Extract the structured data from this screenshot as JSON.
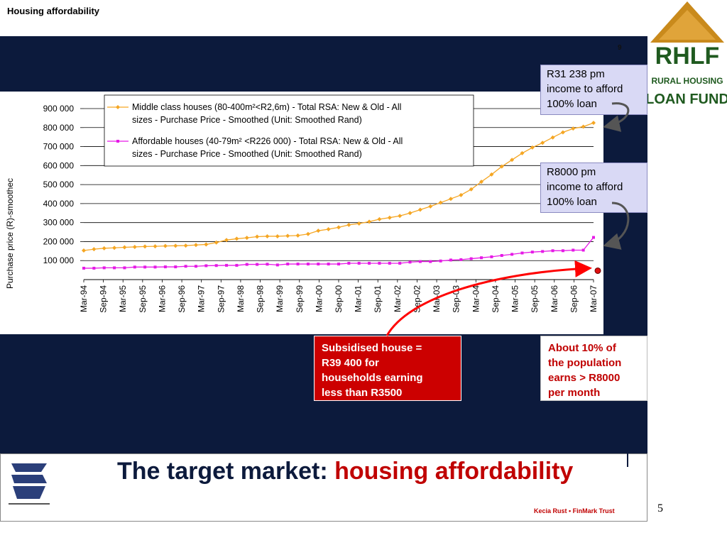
{
  "header": {
    "title": "Housing affordability",
    "slide_marker": "9"
  },
  "callouts": {
    "middle": "R31 238 pm income to afford 100% loan",
    "middle_lines": [
      "R31 238 pm",
      "income to afford",
      "100% loan"
    ],
    "affordable_lines": [
      "R8000 pm",
      "income to afford",
      "100% loan"
    ],
    "subsidised_lines": [
      "Subsidised house =",
      "R39 400 for",
      "households earning",
      "less than R3500"
    ],
    "population_lines": [
      "About 10% of",
      "the population",
      "earns > R8000",
      "per month"
    ]
  },
  "footer": {
    "title_prefix": "The target market: ",
    "title_highlight": "housing affordability",
    "credit": "Kecia Rust • FinMark Trust",
    "page_number": "5"
  },
  "logo": {
    "lines": [
      "RHLF",
      "RURAL HOUSING",
      "LOAN FUND"
    ]
  },
  "colors": {
    "navy": "#0c1a3c",
    "orange": "#f5a623",
    "magenta": "#e619e6",
    "red": "#c00000",
    "callout_bg": "#d9d9f5"
  },
  "chart_data": {
    "type": "line",
    "ylabel": "Purchase price (R)-smoothec",
    "ylim": [
      0,
      900000
    ],
    "yticks": [
      "100 000",
      "200 000",
      "300 000",
      "400 000",
      "500 000",
      "600 000",
      "700 000",
      "800 000",
      "900 000"
    ],
    "x_labels": [
      "Mar-94",
      "Sep-94",
      "Mar-95",
      "Sep-95",
      "Mar-96",
      "Sep-96",
      "Mar-97",
      "Sep-97",
      "Mar-98",
      "Sep-98",
      "Mar-99",
      "Sep-99",
      "Mar-00",
      "Sep-00",
      "Mar-01",
      "Sep-01",
      "Mar-02",
      "Sep-02",
      "Mar-03",
      "Sep-03",
      "Mar-04",
      "Sep-04",
      "Mar-05",
      "Sep-05",
      "Mar-06",
      "Sep-06",
      "Mar-07"
    ],
    "grid": true,
    "legend_position": "top",
    "series": [
      {
        "name": "Middle class houses (80-400m²<R2,6m) - Total RSA: New & Old - All sizes - Purchase Price - Smoothed (Unit: Smoothed Rand)",
        "name_lines": [
          "Middle class houses (80-400m²<R2,6m) - Total RSA: New & Old - All",
          "sizes - Purchase Price - Smoothed (Unit: Smoothed Rand)"
        ],
        "color": "#f5a623",
        "values": [
          153000,
          160000,
          165000,
          167000,
          170000,
          172000,
          174000,
          175000,
          177000,
          178000,
          179000,
          182000,
          185000,
          195000,
          208000,
          215000,
          220000,
          226000,
          228000,
          228000,
          230000,
          232000,
          240000,
          257000,
          265000,
          275000,
          288000,
          295000,
          305000,
          318000,
          326000,
          335000,
          350000,
          368000,
          385000,
          405000,
          425000,
          445000,
          475000,
          515000,
          553000,
          595000,
          630000,
          665000,
          695000,
          720000,
          748000,
          775000,
          795000,
          805000,
          825000
        ]
      },
      {
        "name": "Affordable houses (40-79m² <R226 000) - Total RSA: New & Old - All sizes - Purchase Price - Smoothed (Unit: Smoothed Rand)",
        "name_lines": [
          "Affordable houses (40-79m² <R226 000) - Total RSA: New & Old - All",
          "sizes - Purchase Price - Smoothed (Unit: Smoothed Rand)"
        ],
        "color": "#e619e6",
        "values": [
          60000,
          60000,
          62000,
          62000,
          62000,
          66000,
          66000,
          66000,
          67000,
          67000,
          70000,
          70000,
          73000,
          74000,
          75000,
          75000,
          80000,
          80000,
          81000,
          77000,
          82000,
          82000,
          82000,
          82000,
          82000,
          82000,
          86000,
          86000,
          86000,
          86000,
          86000,
          86000,
          92000,
          95000,
          95000,
          98000,
          103000,
          105000,
          110000,
          115000,
          120000,
          127000,
          133000,
          140000,
          145000,
          148000,
          152000,
          152000,
          155000,
          155000,
          222000
        ]
      }
    ],
    "marker": {
      "x_index": 26,
      "value": 39400
    }
  }
}
